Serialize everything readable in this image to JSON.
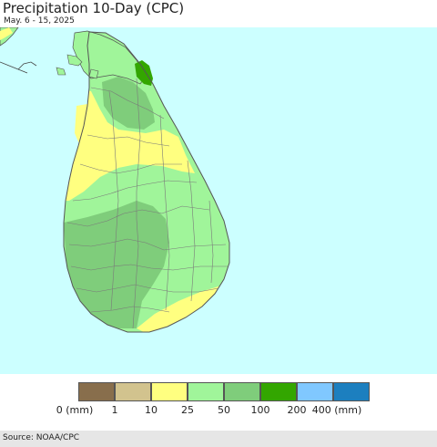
{
  "title": "Precipitation 10-Day (CPC)",
  "subtitle": "May. 6 - 15, 2025",
  "source": "Source: NOAA/CPC",
  "colors": {
    "ocean": "#ccffff",
    "land_outline": "#555555",
    "district_lines": "#7a7a7a"
  },
  "legend": {
    "unit_first": "0 (mm)",
    "unit_last": "400 (mm)",
    "bins": [
      {
        "color": "#886e4c"
      },
      {
        "color": "#d2c38e"
      },
      {
        "color": "#ffff80"
      },
      {
        "color": "#a0f59a"
      },
      {
        "color": "#7fcd7b"
      },
      {
        "color": "#33a600"
      },
      {
        "color": "#80c8ff"
      },
      {
        "color": "#1c7fbf"
      }
    ],
    "labels": [
      "0 (mm)",
      "1",
      "10",
      "25",
      "50",
      "100",
      "200",
      "400 (mm)"
    ]
  },
  "regions": [
    {
      "id": "north-tip",
      "category": "25-50 mm",
      "color": "#a0f59a"
    },
    {
      "id": "jaffna-dark",
      "category": "100-200 mm",
      "color": "#33a600"
    },
    {
      "id": "northwest-dry",
      "category": "10-25 mm",
      "color": "#ffff80"
    },
    {
      "id": "central-band",
      "category": "25-50 mm",
      "color": "#a0f59a"
    },
    {
      "id": "southwest-wet",
      "category": "50-100 mm",
      "color": "#7fcd7b"
    },
    {
      "id": "southeast-coast",
      "category": "10-25 mm",
      "color": "#ffff80"
    },
    {
      "id": "northeast-inland",
      "category": "50-100 mm",
      "color": "#7fcd7b"
    }
  ]
}
